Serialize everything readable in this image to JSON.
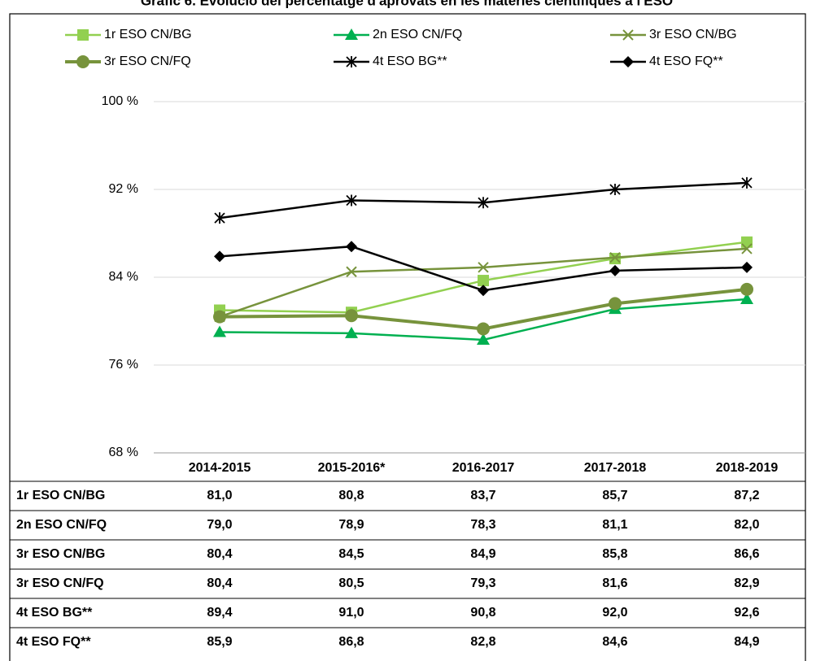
{
  "chart_data": {
    "type": "line",
    "title": "Gràfic 6. Evolució del percentatge d'aprovats en les matèries científiques a l'ESO",
    "categories": [
      "2014-2015",
      "2015-2016*",
      "2016-2017",
      "2017-2018",
      "2018-2019"
    ],
    "series": [
      {
        "name": "1r ESO CN/BG",
        "color": "#92d050",
        "marker": "square",
        "values": [
          81.0,
          80.8,
          83.7,
          85.7,
          87.2
        ],
        "value_labels": [
          "81,0",
          "80,8",
          "83,7",
          "85,7",
          "87,2"
        ]
      },
      {
        "name": "2n ESO CN/FQ",
        "color": "#00b050",
        "marker": "triangle",
        "values": [
          79.0,
          78.9,
          78.3,
          81.1,
          82.0
        ],
        "value_labels": [
          "79,0",
          "78,9",
          "78,3",
          "81,1",
          "82,0"
        ]
      },
      {
        "name": "3r ESO CN/BG",
        "color": "#77933c",
        "marker": "x",
        "values": [
          80.4,
          84.5,
          84.9,
          85.8,
          86.6
        ],
        "value_labels": [
          "80,4",
          "84,5",
          "84,9",
          "85,8",
          "86,6"
        ]
      },
      {
        "name": "3r ESO CN/FQ",
        "color": "#77933c",
        "marker": "circle",
        "values": [
          80.4,
          80.5,
          79.3,
          81.6,
          82.9
        ],
        "value_labels": [
          "80,4",
          "80,5",
          "79,3",
          "81,6",
          "82,9"
        ]
      },
      {
        "name": "4t ESO BG**",
        "color": "#000000",
        "marker": "star",
        "values": [
          89.4,
          91.0,
          90.8,
          92.0,
          92.6
        ],
        "value_labels": [
          "89,4",
          "91,0",
          "90,8",
          "92,0",
          "92,6"
        ]
      },
      {
        "name": "4t ESO FQ**",
        "color": "#000000",
        "marker": "diamond",
        "values": [
          85.9,
          86.8,
          82.8,
          84.6,
          84.9
        ],
        "value_labels": [
          "85,9",
          "86,8",
          "82,8",
          "84,6",
          "84,9"
        ]
      }
    ],
    "ylim": [
      68,
      100
    ],
    "yticks": [
      {
        "value": 68,
        "label": "68 %"
      },
      {
        "value": 76,
        "label": "76 %"
      },
      {
        "value": 84,
        "label": "84 %"
      },
      {
        "value": 92,
        "label": "92 %"
      },
      {
        "value": 100,
        "label": "100 %"
      }
    ],
    "grid": true,
    "legend": "top"
  }
}
